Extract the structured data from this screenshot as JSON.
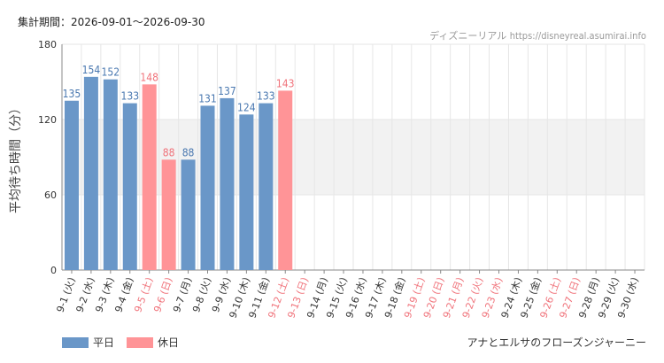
{
  "header": {
    "period": "集計期間：2026-09-01～2026-09-30",
    "source_name": "ディズニーリアル",
    "source_url": "https://disneyreal.asumirai.info"
  },
  "legend": {
    "weekday": "平日",
    "holiday": "休日"
  },
  "footer": {
    "attraction": "アナとエルサのフローズンジャーニー"
  },
  "colors": {
    "weekday": "#6a97c8",
    "holiday": "#ff9497",
    "weekday_label": "#4a78b0",
    "holiday_label": "#f0727a",
    "band": "#f2f2f2",
    "grid": "#e6e6e6"
  },
  "chart_data": {
    "type": "bar",
    "ylabel": "平均待ち時間（分）",
    "ylim": [
      0,
      180
    ],
    "yticks": [
      0,
      60,
      120,
      180
    ],
    "categories": [
      "9-1 (火)",
      "9-2 (水)",
      "9-3 (木)",
      "9-4 (金)",
      "9-5 (土)",
      "9-6 (日)",
      "9-7 (月)",
      "9-8 (火)",
      "9-9 (水)",
      "9-10 (木)",
      "9-11 (金)",
      "9-12 (土)",
      "9-13 (日)",
      "9-14 (月)",
      "9-15 (火)",
      "9-16 (水)",
      "9-17 (木)",
      "9-18 (金)",
      "9-19 (土)",
      "9-20 (日)",
      "9-21 (月)",
      "9-22 (火)",
      "9-23 (水)",
      "9-24 (木)",
      "9-25 (金)",
      "9-26 (土)",
      "9-27 (日)",
      "9-28 (月)",
      "9-29 (火)",
      "9-30 (水)"
    ],
    "values": [
      135,
      154,
      152,
      133,
      148,
      88,
      88,
      131,
      137,
      124,
      133,
      143,
      null,
      null,
      null,
      null,
      null,
      null,
      null,
      null,
      null,
      null,
      null,
      null,
      null,
      null,
      null,
      null,
      null,
      null
    ],
    "holiday": [
      false,
      false,
      false,
      false,
      true,
      true,
      false,
      false,
      false,
      false,
      false,
      true,
      true,
      false,
      false,
      false,
      false,
      false,
      true,
      true,
      true,
      true,
      true,
      false,
      false,
      true,
      true,
      false,
      false,
      false
    ],
    "band_range": [
      60,
      120
    ],
    "grid": true,
    "legend_position": "bottom-left"
  }
}
